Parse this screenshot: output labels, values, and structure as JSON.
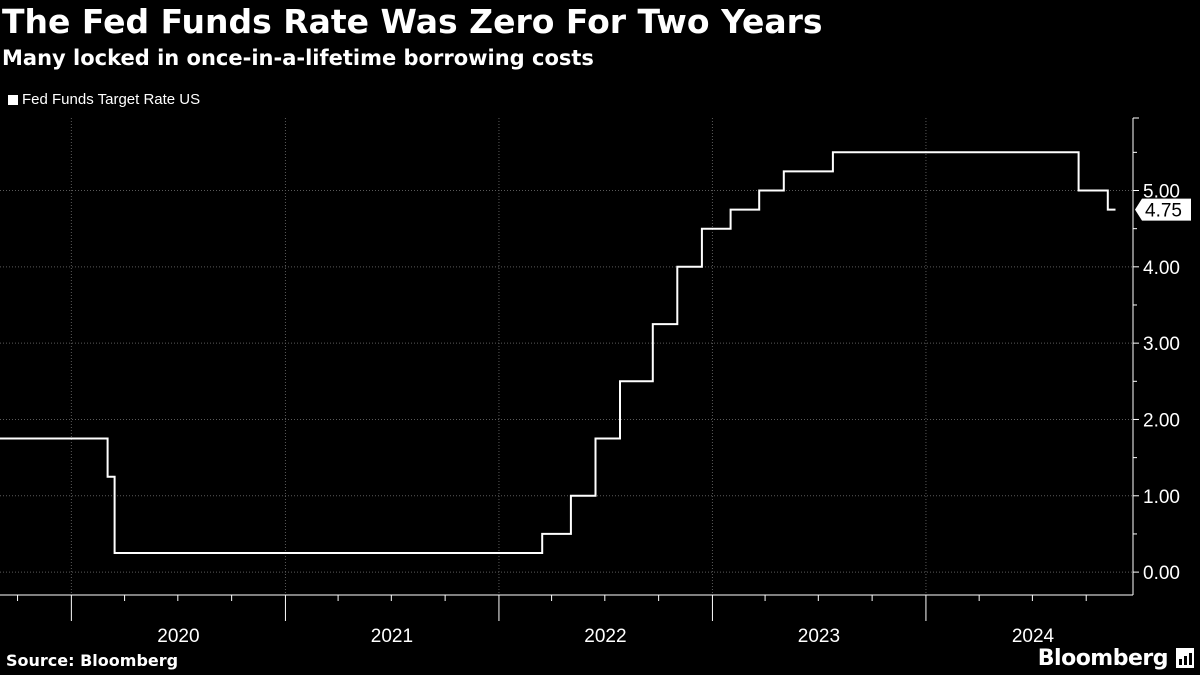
{
  "header": {
    "title": "The Fed Funds Rate Was Zero For Two Years",
    "subtitle": "Many locked in once-in-a-lifetime borrowing costs"
  },
  "footer": {
    "source": "Source: Bloomberg",
    "brand": "Bloomberg"
  },
  "colors": {
    "background": "#000000",
    "line": "#ffffff",
    "grid": "#5a5a5a",
    "text": "#ffffff"
  },
  "icons": {
    "brand_badge": "bloomberg-terminal-icon"
  },
  "chart_data": {
    "type": "line",
    "step": true,
    "legend": [
      "Fed Funds Target Rate US"
    ],
    "legend_position": "top-left",
    "grid": true,
    "y_axis_side": "right",
    "ylim": [
      -0.3,
      5.95
    ],
    "xlim": [
      "2019-09-01",
      "2024-12-20"
    ],
    "y_ticks": [
      "0.00",
      "1.00",
      "2.00",
      "3.00",
      "4.00",
      "5.00"
    ],
    "x_tick_labels": [
      "2020",
      "2021",
      "2022",
      "2023",
      "2024"
    ],
    "last_value_label": "4.75",
    "series": [
      {
        "name": "Fed Funds Target Rate US",
        "points": [
          [
            "2019-09-01",
            1.75
          ],
          [
            "2020-03-03",
            1.25
          ],
          [
            "2020-03-15",
            0.25
          ],
          [
            "2022-03-16",
            0.5
          ],
          [
            "2022-05-04",
            1.0
          ],
          [
            "2022-06-15",
            1.75
          ],
          [
            "2022-07-27",
            2.5
          ],
          [
            "2022-09-21",
            3.25
          ],
          [
            "2022-11-02",
            4.0
          ],
          [
            "2022-12-14",
            4.5
          ],
          [
            "2023-02-01",
            4.75
          ],
          [
            "2023-03-22",
            5.0
          ],
          [
            "2023-05-03",
            5.25
          ],
          [
            "2023-07-26",
            5.5
          ],
          [
            "2024-09-18",
            5.0
          ],
          [
            "2024-11-07",
            4.75
          ],
          [
            "2024-11-20",
            4.75
          ]
        ]
      }
    ]
  }
}
